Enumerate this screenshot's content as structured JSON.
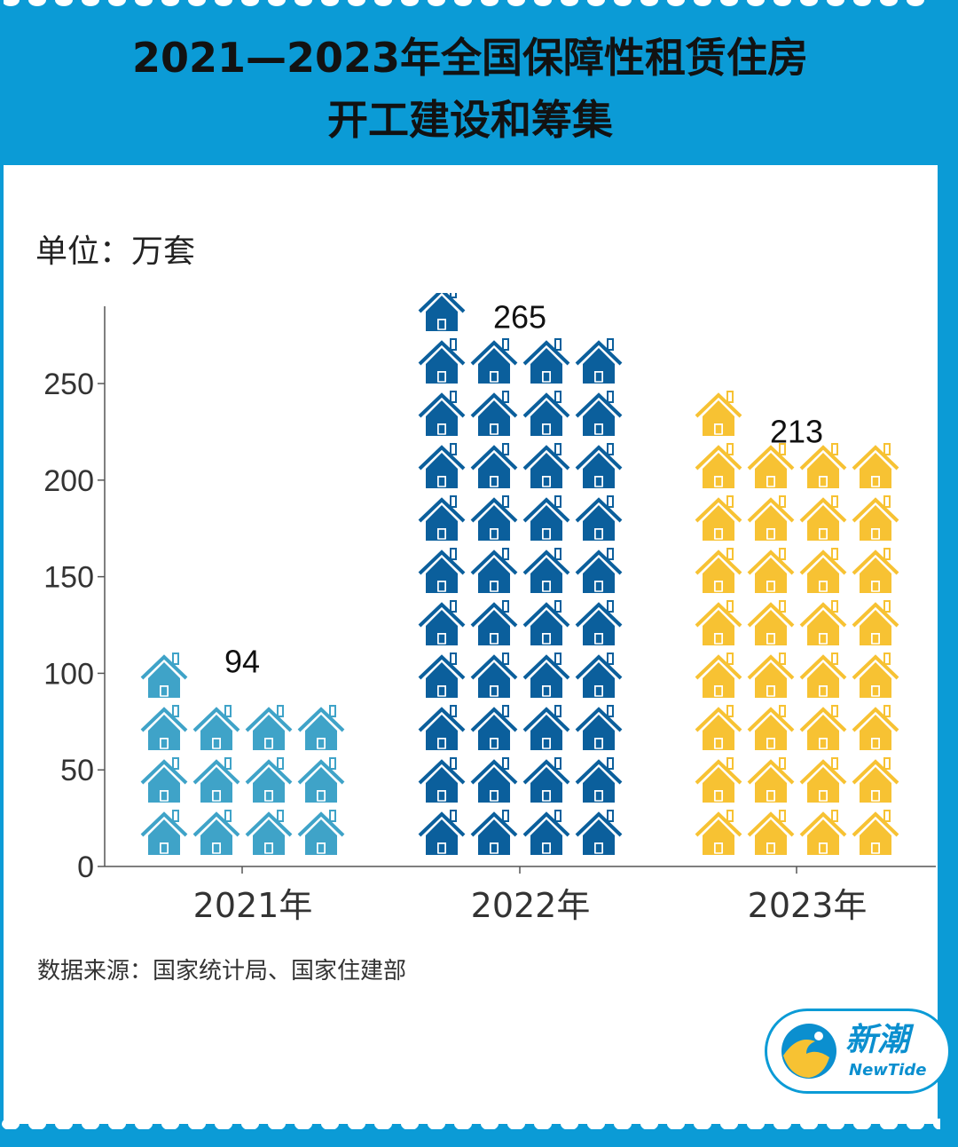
{
  "title_line1": "2021—2023年全国保障性租赁住房",
  "title_line2": "开工建设和筹集",
  "unit_label": "单位：万套",
  "source_text": "数据来源：国家统计局、国家住建部",
  "logo": {
    "cn": "新潮",
    "en": "NewTide"
  },
  "colors": {
    "frame": "#0b9bd6",
    "house_2021": "#3fa3c8",
    "house_2022": "#0b5f9c",
    "house_2023": "#f7c233"
  },
  "chart_data": {
    "type": "bar",
    "style": "pictogram",
    "categories": [
      "2021年",
      "2022年",
      "2023年"
    ],
    "values": [
      94,
      265,
      213
    ],
    "ylim": [
      0,
      290
    ],
    "yticks": [
      0,
      50,
      100,
      150,
      200,
      250
    ],
    "title": "",
    "xlabel": "",
    "ylabel": ""
  }
}
